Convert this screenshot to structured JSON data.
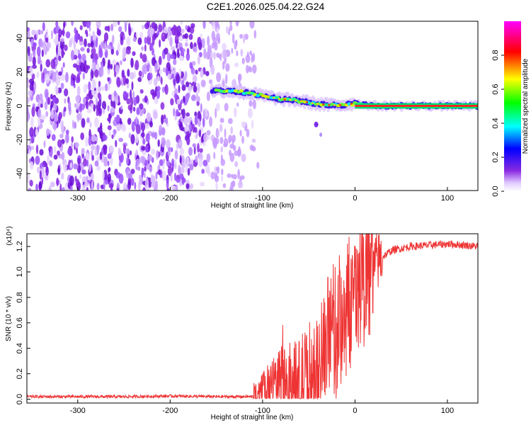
{
  "figure": {
    "title": "C2E1.2026.025.04.22.G24"
  },
  "chart_data": [
    {
      "type": "heatmap",
      "title": "C2E1.2026.025.04.22.G24",
      "xlabel": "Height of straight line (km)",
      "ylabel": "Frequency (Hz)",
      "xlim": [
        -355,
        133
      ],
      "ylim": [
        -50,
        50
      ],
      "x_ticks": [
        -300,
        -200,
        -100,
        0,
        100
      ],
      "y_ticks": [
        -40,
        -20,
        0,
        20,
        40
      ],
      "colorbar": {
        "label": "Normalized spectral amplitude",
        "range": [
          0,
          1
        ],
        "ticks": [
          "0.0",
          "0.2",
          "0.4",
          "0.6",
          "0.8"
        ],
        "tick_values": [
          0.0,
          0.2,
          0.4,
          0.6,
          0.8
        ],
        "colormap": [
          "#ffffff",
          "#8a2be2",
          "#0000ff",
          "#00ffff",
          "#00ff00",
          "#ffff00",
          "#ff0000",
          "#ff00ff"
        ]
      },
      "noise_region_x": [
        -355,
        -110
      ],
      "signal_ridge": {
        "x": [
          -155,
          -140,
          -120,
          -100,
          -80,
          -60,
          -45,
          -30,
          -15,
          0,
          20,
          50,
          80,
          110,
          133
        ],
        "y": [
          9,
          9,
          8,
          6,
          4,
          3,
          1.5,
          0.5,
          0.5,
          1.5,
          0,
          0,
          0,
          0,
          0
        ]
      }
    },
    {
      "type": "line",
      "xlabel": "Height of straight line (km)",
      "ylabel": "SNR (10 * v/v)",
      "y_multiplier": "(x10⁴)",
      "xlim": [
        -355,
        133
      ],
      "ylim": [
        -0.03,
        1.3
      ],
      "x_ticks": [
        -300,
        -200,
        -100,
        0,
        100
      ],
      "y_ticks": [
        0.0,
        0.2,
        0.4,
        0.6,
        0.8,
        1.0,
        1.2
      ],
      "y_tick_labels": [
        "0.0",
        "0.2",
        "0.4",
        "0.6",
        "0.8",
        "1.0",
        "1.2"
      ],
      "color": "#ee3333",
      "x": [
        -355,
        -300,
        -250,
        -200,
        -150,
        -110,
        -100,
        -90,
        -80,
        -70,
        -60,
        -50,
        -40,
        -30,
        -20,
        -10,
        0,
        10,
        20,
        30,
        40,
        60,
        80,
        100,
        120,
        133
      ],
      "y": [
        0.02,
        0.02,
        0.02,
        0.025,
        0.02,
        0.02,
        0.04,
        0.12,
        0.15,
        0.12,
        0.1,
        0.18,
        0.22,
        0.45,
        0.55,
        0.7,
        0.85,
        0.95,
        1.05,
        1.12,
        1.17,
        1.2,
        1.21,
        1.22,
        1.21,
        1.2
      ]
    }
  ]
}
